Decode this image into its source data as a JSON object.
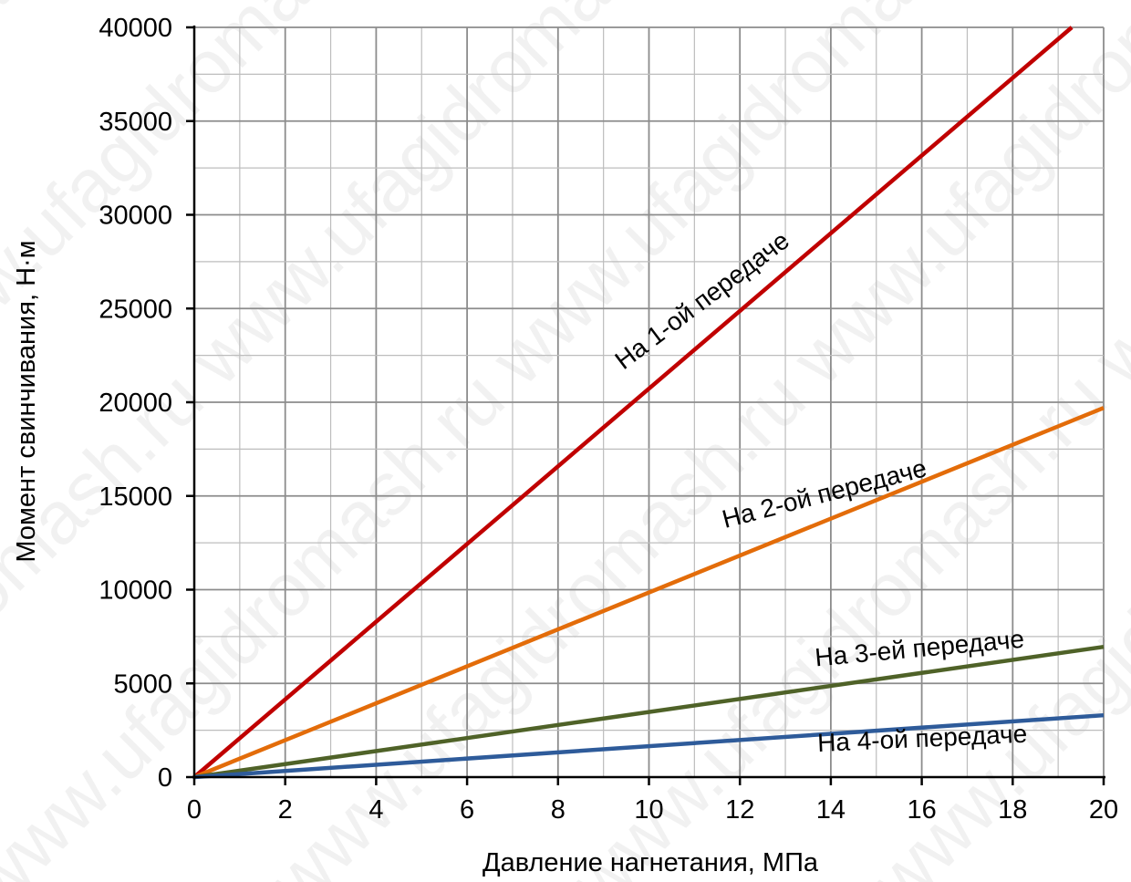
{
  "chart_data": {
    "type": "line",
    "xlabel": "Давление нагнетания, МПа",
    "ylabel": "Момент свинчивания, Н·м",
    "xlim": [
      0,
      20
    ],
    "ylim": [
      0,
      40000
    ],
    "xticks": [
      0,
      2,
      4,
      6,
      8,
      10,
      12,
      14,
      16,
      18,
      20
    ],
    "yticks": [
      0,
      5000,
      10000,
      15000,
      20000,
      25000,
      30000,
      35000,
      40000
    ],
    "grid": true,
    "legend": "none",
    "series": [
      {
        "name": "На 1-ой передаче",
        "color": "#C00000",
        "x": [
          0,
          19.3
        ],
        "y": [
          0,
          40000
        ]
      },
      {
        "name": "На 2-ой передаче",
        "color": "#E36C09",
        "x": [
          0,
          20
        ],
        "y": [
          0,
          19700
        ]
      },
      {
        "name": "На 3-ей передаче",
        "color": "#4F6228",
        "x": [
          0,
          20
        ],
        "y": [
          0,
          6950
        ]
      },
      {
        "name": "На 4-ой передаче",
        "color": "#2E5B9A",
        "x": [
          0,
          20
        ],
        "y": [
          0,
          3300
        ]
      }
    ],
    "watermark": "www.ufagidromash.ru"
  }
}
